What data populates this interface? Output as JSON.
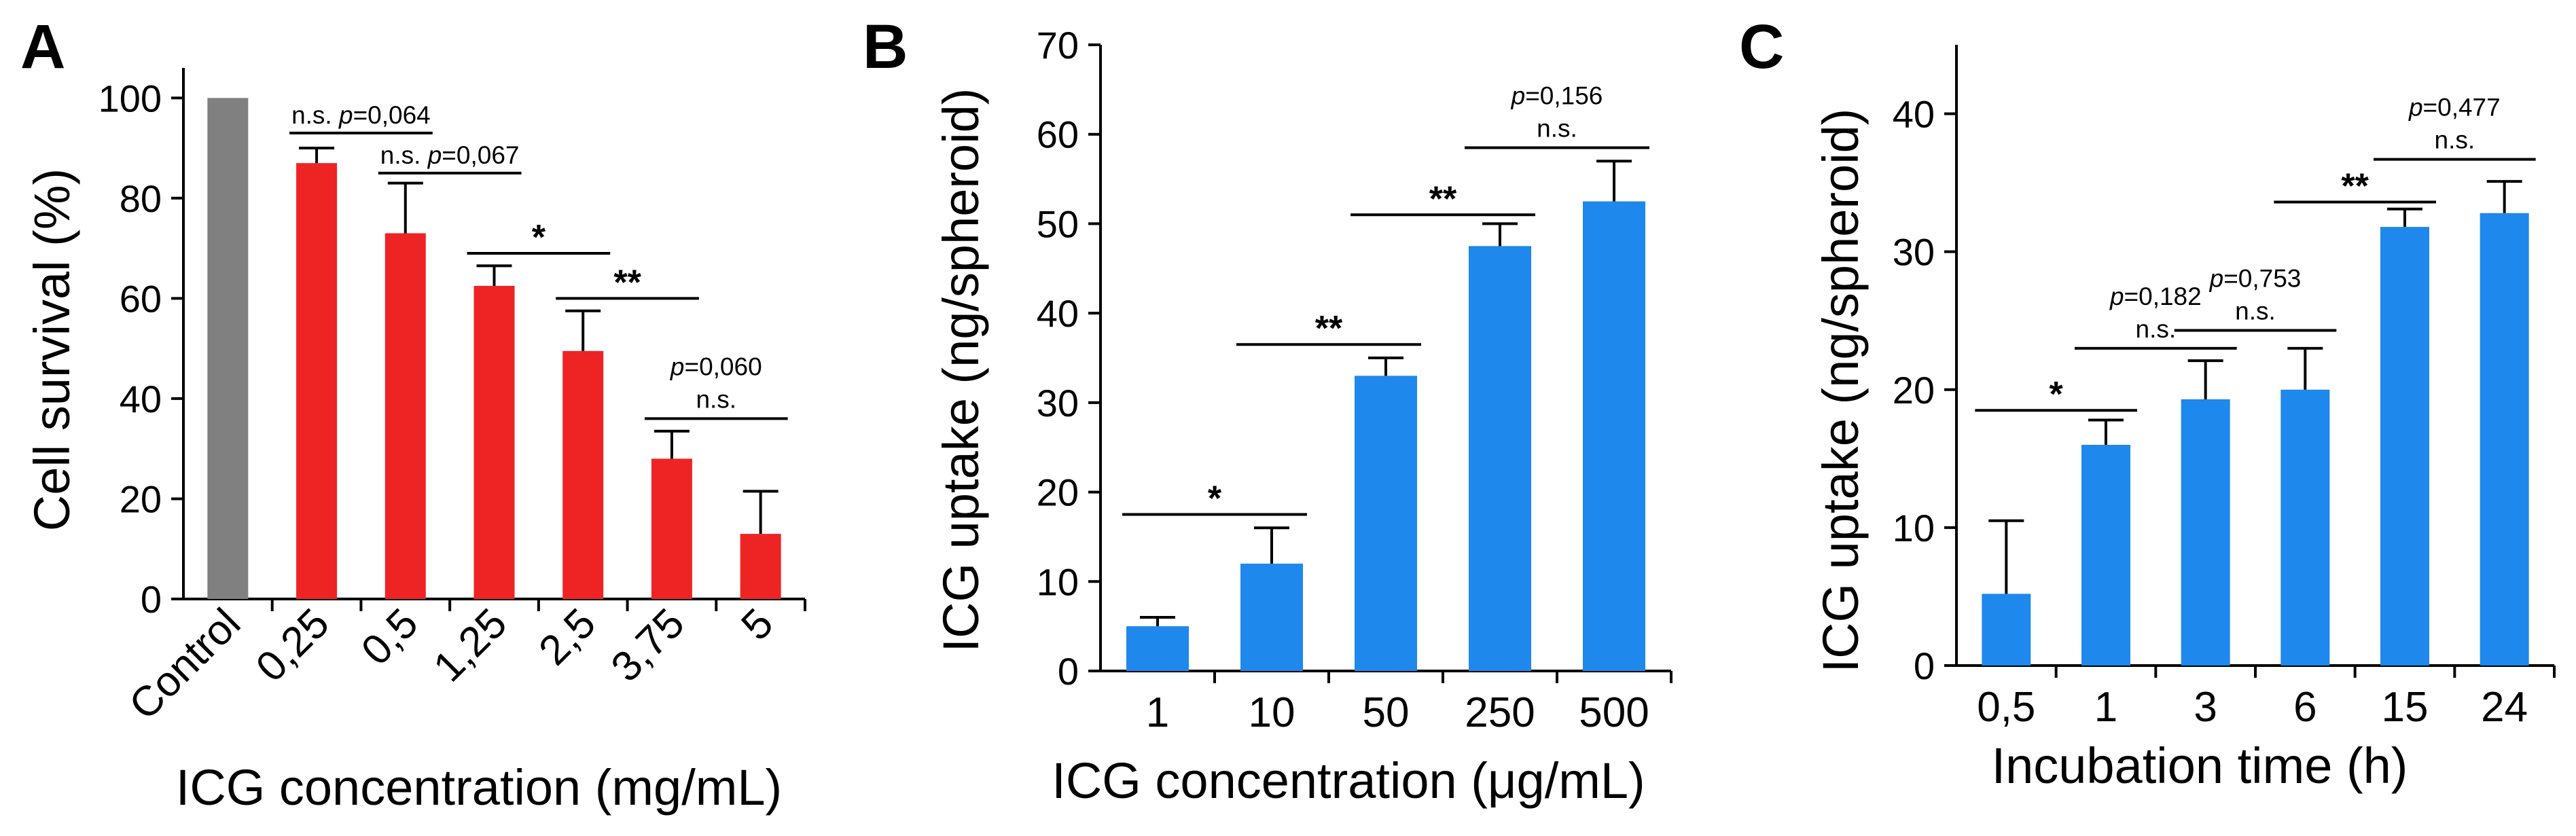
{
  "colors": {
    "control": "#808080",
    "red": "#ee2424",
    "blue": "#1e88ec",
    "axis": "#000000"
  },
  "chart_data": [
    {
      "panel": "A",
      "type": "bar",
      "xlabel": "ICG concentration (mg/mL)",
      "ylabel": "Cell survival (%)",
      "ylim": [
        0,
        106
      ],
      "yticks": [
        0,
        20,
        40,
        60,
        80,
        100
      ],
      "categories": [
        "Control",
        "0,25",
        "0,5",
        "1,25",
        "2,5",
        "3,75",
        "5"
      ],
      "x_tick_rotation": "rotated",
      "values": [
        100,
        87,
        73,
        62.5,
        49.5,
        28,
        13
      ],
      "errors": [
        0,
        3,
        10,
        4,
        8,
        5.5,
        8.5
      ],
      "bar_colors": [
        "control",
        "red",
        "red",
        "red",
        "red",
        "red",
        "red"
      ],
      "annotations": [
        {
          "from": 1,
          "to": 2,
          "y": 93,
          "label": "n.s.",
          "p": "0,064"
        },
        {
          "from": 2,
          "to": 3,
          "y": 85,
          "label": "n.s.",
          "p": "0,067"
        },
        {
          "from": 3,
          "to": 4,
          "y": 69,
          "label": "*"
        },
        {
          "from": 4,
          "to": 5,
          "y": 60,
          "label": "**"
        },
        {
          "from": 5,
          "to": 6,
          "y": 36,
          "label": "n.s.",
          "p": "0,060",
          "p_above": true
        }
      ]
    },
    {
      "panel": "B",
      "type": "bar",
      "xlabel": "ICG concentration (μg/mL)",
      "ylabel": "ICG uptake (ng/spheroid)",
      "ylim": [
        0,
        70
      ],
      "yticks": [
        0,
        10,
        20,
        30,
        40,
        50,
        60,
        70
      ],
      "categories": [
        "1",
        "10",
        "50",
        "250",
        "500"
      ],
      "values": [
        5,
        12,
        33,
        47.5,
        52.5
      ],
      "errors": [
        1,
        4,
        2,
        2.5,
        4.5
      ],
      "bar_colors": [
        "blue",
        "blue",
        "blue",
        "blue",
        "blue"
      ],
      "annotations": [
        {
          "from": 0,
          "to": 1,
          "y": 17.5,
          "label": "*"
        },
        {
          "from": 1,
          "to": 2,
          "y": 36.5,
          "label": "**"
        },
        {
          "from": 2,
          "to": 3,
          "y": 51,
          "label": "**"
        },
        {
          "from": 3,
          "to": 4,
          "y": 58.5,
          "label": "n.s.",
          "p": "0,156",
          "p_above": true
        }
      ]
    },
    {
      "panel": "C",
      "type": "bar",
      "xlabel": "Incubation time (h)",
      "ylabel": "ICG uptake (ng/spheroid)",
      "ylim": [
        0,
        45
      ],
      "yticks": [
        0,
        10,
        20,
        30,
        40
      ],
      "categories": [
        "0,5",
        "1",
        "3",
        "6",
        "15",
        "24"
      ],
      "values": [
        5.2,
        16,
        19.3,
        20,
        31.8,
        32.8
      ],
      "errors": [
        5.3,
        1.8,
        2.8,
        3,
        1.3,
        2.3
      ],
      "bar_colors": [
        "blue",
        "blue",
        "blue",
        "blue",
        "blue",
        "blue"
      ],
      "annotations": [
        {
          "from": 0,
          "to": 1,
          "y": 18.5,
          "label": "*"
        },
        {
          "from": 1,
          "to": 2,
          "y": 23,
          "label": "n.s.",
          "p": "0,182",
          "p_above": true
        },
        {
          "from": 2,
          "to": 3,
          "y": 24.3,
          "label": "n.s.",
          "p": "0,753",
          "p_above": true
        },
        {
          "from": 3,
          "to": 4,
          "y": 33.6,
          "label": "**"
        },
        {
          "from": 4,
          "to": 5,
          "y": 36.7,
          "label": "n.s.",
          "p": "0,477",
          "p_above": true
        }
      ]
    }
  ]
}
